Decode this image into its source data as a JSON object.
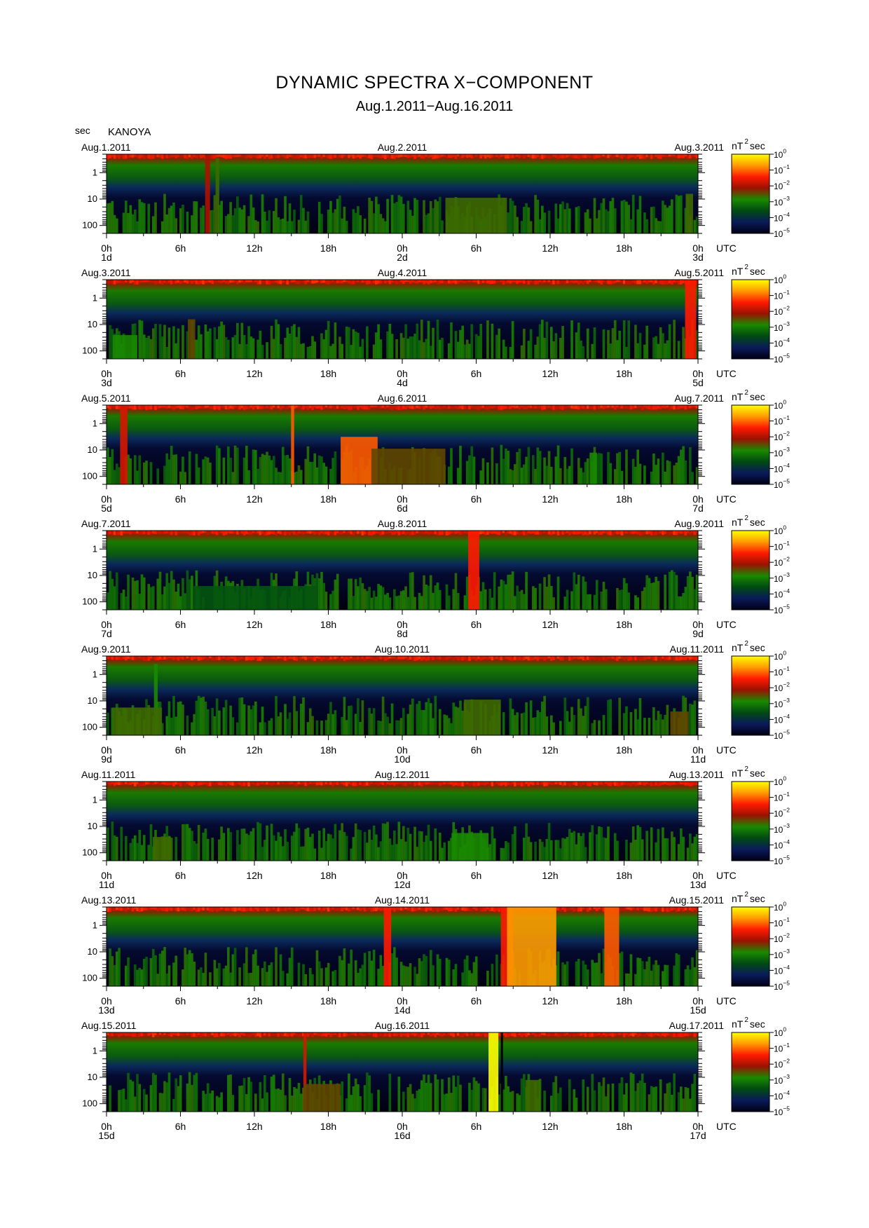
{
  "title": "DYNAMIC SPECTRA X−COMPONENT",
  "subtitle": "Aug.1.2011−Aug.16.2011",
  "station": "KANOYA",
  "y_unit": "sec",
  "time_unit": "UTC",
  "colorbar": {
    "unit_base": "nT",
    "unit_exp": "2",
    "unit_tail": "sec",
    "labels": [
      {
        "base": "10",
        "exp": "0"
      },
      {
        "base": "10",
        "exp": "−1"
      },
      {
        "base": "10",
        "exp": "−2"
      },
      {
        "base": "10",
        "exp": "−3"
      },
      {
        "base": "10",
        "exp": "−4"
      },
      {
        "base": "10",
        "exp": "−5"
      }
    ],
    "stops": [
      "#ffff00",
      "#ff9a00",
      "#ff1a00",
      "#9a1200",
      "#1a8a00",
      "#004a12",
      "#0a1a5a",
      "#000014"
    ]
  },
  "chart_data": {
    "type": "heatmap",
    "x_ticks": [
      "0h",
      "6h",
      "12h",
      "18h",
      "0h",
      "6h",
      "12h",
      "18h",
      "0h"
    ],
    "y_ticks": [
      "1",
      "10",
      "100"
    ],
    "y_scale": "log",
    "y_range": [
      0.2,
      200
    ],
    "color_scale": "log",
    "color_range": [
      1e-05,
      1
    ],
    "panels": [
      {
        "start": "Aug.1.2011",
        "mid": "Aug.2.2011",
        "end": "Aug.3.2011",
        "days": [
          "1d",
          "2d",
          "3d"
        ],
        "events": [
          {
            "t": 8.2,
            "w": 0.4,
            "lvl": 0.7,
            "top": 1.0
          },
          {
            "t": 9.0,
            "w": 0.3,
            "lvl": 0.55,
            "top": 0.95
          },
          {
            "t": 30,
            "w": 5,
            "lvl": 0.55,
            "top": 0.45
          },
          {
            "t": 47.3,
            "w": 0.6,
            "lvl": 0.55,
            "top": 0.5
          }
        ]
      },
      {
        "start": "Aug.3.2011",
        "mid": "Aug.4.2011",
        "end": "Aug.5.2011",
        "days": [
          "3d",
          "4d",
          "5d"
        ],
        "events": [
          {
            "t": 1.5,
            "w": 2,
            "lvl": 0.5,
            "top": 0.3
          },
          {
            "t": 6.9,
            "w": 0.6,
            "lvl": 0.6,
            "top": 0.5
          },
          {
            "t": 47.4,
            "w": 0.9,
            "lvl": 0.8,
            "top": 1.0
          }
        ]
      },
      {
        "start": "Aug.5.2011",
        "mid": "Aug.6.2011",
        "end": "Aug.7.2011",
        "days": [
          "5d",
          "6d",
          "7d"
        ],
        "events": [
          {
            "t": 1.4,
            "w": 0.6,
            "lvl": 0.75,
            "top": 1.0
          },
          {
            "t": 15.1,
            "w": 0.25,
            "lvl": 0.85,
            "top": 1.0
          },
          {
            "t": 20.5,
            "w": 3,
            "lvl": 0.85,
            "top": 0.6
          },
          {
            "t": 24.5,
            "w": 6,
            "lvl": 0.6,
            "top": 0.45
          },
          {
            "t": 39.5,
            "w": 0.6,
            "lvl": 0.5,
            "top": 0.4
          }
        ]
      },
      {
        "start": "Aug.7.2011",
        "mid": "Aug.8.2011",
        "end": "Aug.9.2011",
        "days": [
          "7d",
          "8d",
          "9d"
        ],
        "events": [
          {
            "t": 29.8,
            "w": 0.9,
            "lvl": 0.8,
            "top": 1.0
          },
          {
            "t": 12,
            "w": 10,
            "lvl": 0.4,
            "top": 0.3
          }
        ]
      },
      {
        "start": "Aug.9.2011",
        "mid": "Aug.10.2011",
        "end": "Aug.11.2011",
        "days": [
          "9d",
          "10d",
          "11d"
        ],
        "events": [
          {
            "t": 4,
            "w": 0.3,
            "lvl": 0.5,
            "top": 0.9
          },
          {
            "t": 2.5,
            "w": 4,
            "lvl": 0.55,
            "top": 0.35
          },
          {
            "t": 30.5,
            "w": 3,
            "lvl": 0.55,
            "top": 0.45
          },
          {
            "t": 46.5,
            "w": 1.5,
            "lvl": 0.6,
            "top": 0.3
          }
        ]
      },
      {
        "start": "Aug.11.2011",
        "mid": "Aug.12.2011",
        "end": "Aug.13.2011",
        "days": [
          "11d",
          "12d",
          "13d"
        ],
        "events": [
          {
            "t": 4.5,
            "w": 1.5,
            "lvl": 0.55,
            "top": 0.3
          },
          {
            "t": 29.5,
            "w": 3,
            "lvl": 0.5,
            "top": 0.35
          }
        ]
      },
      {
        "start": "Aug.13.2011",
        "mid": "Aug.14.2011",
        "end": "Aug.15.2011",
        "days": [
          "13d",
          "14d",
          "15d"
        ],
        "events": [
          {
            "t": 22.8,
            "w": 0.6,
            "lvl": 0.8,
            "top": 1.0
          },
          {
            "t": 32.5,
            "w": 1,
            "lvl": 0.8,
            "top": 1.0
          },
          {
            "t": 34.5,
            "w": 4,
            "lvl": 0.9,
            "top": 1.0
          },
          {
            "t": 41,
            "w": 1.2,
            "lvl": 0.85,
            "top": 1.0
          }
        ]
      },
      {
        "start": "Aug.15.2011",
        "mid": "Aug.16.2011",
        "end": "Aug.17.2011",
        "days": [
          "15d",
          "16d",
          "17d"
        ],
        "events": [
          {
            "t": 16.1,
            "w": 0.25,
            "lvl": 0.75,
            "top": 1.0
          },
          {
            "t": 17.5,
            "w": 3,
            "lvl": 0.6,
            "top": 0.35
          },
          {
            "t": 31.4,
            "w": 0.8,
            "lvl": 1.0,
            "top": 1.0
          },
          {
            "t": 34.6,
            "w": 1.2,
            "lvl": 0.55,
            "top": 0.4
          }
        ],
        "gap": {
          "t": 32.0,
          "w": 0.15
        }
      }
    ]
  }
}
